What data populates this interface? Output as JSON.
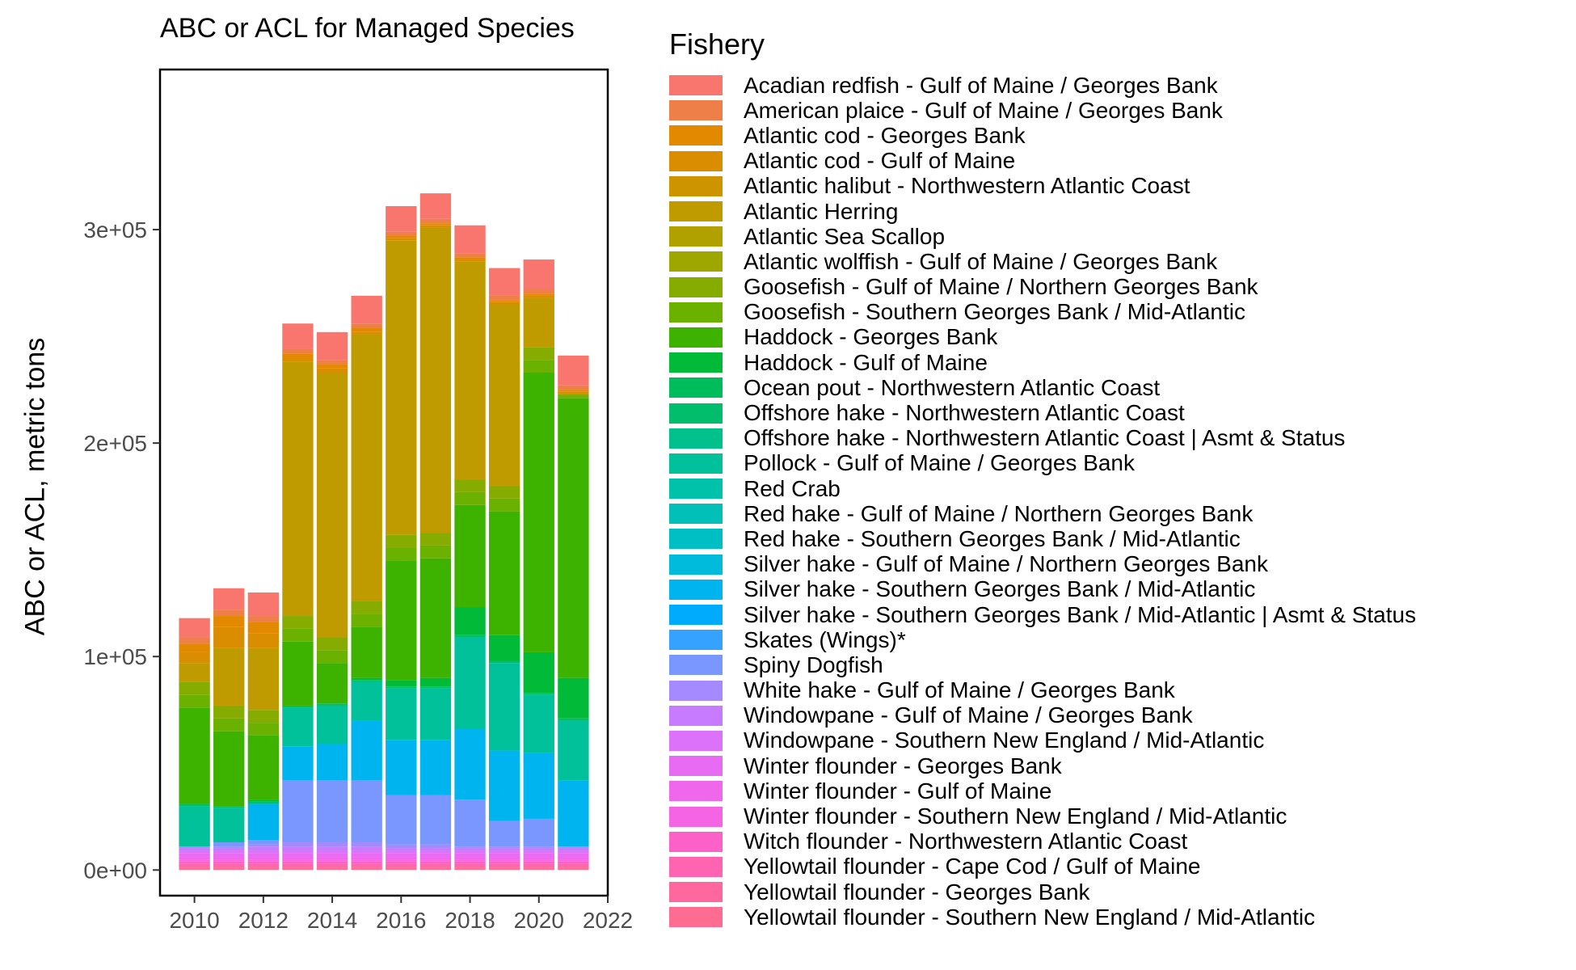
{
  "chart_data": {
    "type": "bar",
    "stacked": true,
    "title": "ABC or ACL for Managed Species",
    "xlabel": "",
    "ylabel": "ABC or ACL, metric tons",
    "legend_title": "Fishery",
    "legend_position": "right",
    "grid": false,
    "xlim": [
      2009,
      2022
    ],
    "ylim": [
      -12000,
      375000
    ],
    "x_ticks": [
      2010,
      2012,
      2014,
      2016,
      2018,
      2020,
      2022
    ],
    "x_tick_labels": [
      "2010",
      "2012",
      "2014",
      "2016",
      "2018",
      "2020",
      "2022"
    ],
    "y_ticks": [
      0,
      100000,
      200000,
      300000
    ],
    "y_tick_labels": [
      "0e+00",
      "1e+05",
      "2e+05",
      "3e+05"
    ],
    "x": [
      2010,
      2011,
      2012,
      2013,
      2014,
      2015,
      2016,
      2017,
      2018,
      2019,
      2020,
      2021
    ],
    "series": [
      {
        "name": "Yellowtail flounder - Southern New England / Mid-Atlantic",
        "color": "#FF6C91",
        "values": [
          1000,
          1000,
          1000,
          1000,
          1000,
          1000,
          1000,
          1000,
          1000,
          1000,
          1000,
          1000
        ]
      },
      {
        "name": "Yellowtail flounder - Georges Bank",
        "color": "#FF689F",
        "values": [
          1000,
          1000,
          1000,
          1000,
          1000,
          1000,
          1000,
          1000,
          1000,
          1000,
          1000,
          1000
        ]
      },
      {
        "name": "Yellowtail flounder - Cape Cod / Gulf of Maine",
        "color": "#FF64B0",
        "values": [
          1000,
          1000,
          1000,
          1000,
          1000,
          1000,
          1000,
          1000,
          1000,
          1000,
          1000,
          1000
        ]
      },
      {
        "name": "Witch flounder - Northwestern Atlantic Coast",
        "color": "#FB61C7",
        "values": [
          1000,
          1000,
          1000,
          1000,
          1000,
          1000,
          1000,
          1000,
          1000,
          1000,
          1000,
          1000
        ]
      },
      {
        "name": "Winter flounder - Southern New England / Mid-Atlantic",
        "color": "#F564E3",
        "values": [
          1000,
          1000,
          1000,
          1000,
          1000,
          1000,
          1000,
          1000,
          1000,
          1000,
          1000,
          1000
        ]
      },
      {
        "name": "Winter flounder - Gulf of Maine",
        "color": "#EF67EB",
        "values": [
          1000,
          1000,
          1000,
          1000,
          1000,
          1000,
          1000,
          1000,
          1000,
          1000,
          1000,
          1000
        ]
      },
      {
        "name": "Winter flounder - Georges Bank",
        "color": "#E76BF3",
        "values": [
          2000,
          2000,
          2000,
          2000,
          2000,
          2000,
          2000,
          2000,
          2000,
          2000,
          2000,
          2000
        ]
      },
      {
        "name": "Windowpane - Southern New England / Mid-Atlantic",
        "color": "#DC71FA",
        "values": [
          1000,
          1000,
          1000,
          1000,
          1000,
          1000,
          1000,
          1000,
          1000,
          1000,
          1000,
          1000
        ]
      },
      {
        "name": "Windowpane - Gulf of Maine / Georges Bank",
        "color": "#C77CFF",
        "values": [
          1000,
          1000,
          2000,
          2000,
          2000,
          2000,
          1000,
          1000,
          1000,
          1000,
          1000,
          1000
        ]
      },
      {
        "name": "White hake - Gulf of Maine / Georges Bank",
        "color": "#A58AFF",
        "values": [
          1000,
          1000,
          1000,
          2000,
          2000,
          2000,
          2000,
          2000,
          1000,
          1000,
          1000,
          1000
        ]
      },
      {
        "name": "Spiny Dogfish",
        "color": "#7997FF",
        "values": [
          0,
          2000,
          2000,
          29000,
          29000,
          29000,
          23000,
          23000,
          22000,
          12000,
          13000,
          0
        ]
      },
      {
        "name": "Skates (Wings)*",
        "color": "#35A2FF",
        "values": [
          0,
          0,
          0,
          0,
          0,
          0,
          0,
          0,
          0,
          0,
          0,
          0
        ]
      },
      {
        "name": "Silver hake - Southern Georges Bank / Mid-Atlantic | Asmt & Status",
        "color": "#00ABFD",
        "values": [
          0,
          0,
          0,
          0,
          0,
          0,
          0,
          0,
          0,
          0,
          0,
          0
        ]
      },
      {
        "name": "Silver hake - Southern Georges Bank / Mid-Atlantic",
        "color": "#00B4EF",
        "values": [
          0,
          0,
          17000,
          16000,
          17000,
          28000,
          26000,
          26000,
          33000,
          33000,
          31000,
          31000
        ]
      },
      {
        "name": "Silver hake - Gulf of Maine / Northern Georges Bank",
        "color": "#00BBDB",
        "values": [
          0,
          0,
          0,
          0,
          0,
          0,
          0,
          0,
          0,
          0,
          0,
          0
        ]
      },
      {
        "name": "Red hake - Southern Georges Bank / Mid-Atlantic",
        "color": "#00BFC4",
        "values": [
          0,
          0,
          0,
          0,
          0,
          0,
          0,
          0,
          0,
          0,
          0,
          0
        ]
      },
      {
        "name": "Red hake - Gulf of Maine / Northern Georges Bank",
        "color": "#00C0B8",
        "values": [
          0,
          0,
          0,
          0,
          0,
          0,
          0,
          0,
          0,
          0,
          0,
          0
        ]
      },
      {
        "name": "Red Crab",
        "color": "#00C1AA",
        "values": [
          0,
          0,
          0,
          0,
          0,
          0,
          0,
          0,
          0,
          0,
          0,
          0
        ]
      },
      {
        "name": "Pollock - Gulf of Maine / Georges Bank",
        "color": "#00C19A",
        "values": [
          19000,
          16000,
          0,
          18000,
          18000,
          18000,
          24000,
          24000,
          43000,
          41000,
          27000,
          28000
        ]
      },
      {
        "name": "Offshore hake - Northwestern Atlantic Coast | Asmt & Status",
        "color": "#00C08B",
        "values": [
          0,
          0,
          0,
          0,
          0,
          0,
          0,
          0,
          0,
          0,
          0,
          0
        ]
      },
      {
        "name": "Offshore hake - Northwestern Atlantic Coast",
        "color": "#00BE6C",
        "values": [
          1000,
          1000,
          1000,
          1000,
          1000,
          1000,
          1000,
          1000,
          1000,
          1000,
          1000,
          1000
        ]
      },
      {
        "name": "Ocean pout - Northwestern Atlantic Coast",
        "color": "#00BD5C",
        "values": [
          0,
          0,
          0,
          0,
          0,
          0,
          0,
          0,
          0,
          0,
          0,
          0
        ]
      },
      {
        "name": "Haddock - Gulf of Maine",
        "color": "#00BA38",
        "values": [
          0,
          0,
          1000,
          0,
          0,
          1000,
          3000,
          4000,
          13000,
          12000,
          19000,
          19000
        ]
      },
      {
        "name": "Haddock - Georges Bank",
        "color": "#3DB300",
        "values": [
          45000,
          35000,
          30000,
          30000,
          19000,
          24000,
          56000,
          56000,
          48000,
          58000,
          131000,
          131000
        ]
      },
      {
        "name": "Goosefish - Southern Georges Bank / Mid-Atlantic",
        "color": "#6BB100",
        "values": [
          6000,
          6000,
          6000,
          6000,
          6000,
          6000,
          6000,
          6000,
          6000,
          6000,
          6000,
          1000
        ]
      },
      {
        "name": "Goosefish - Gulf of Maine / Northern Georges Bank",
        "color": "#86AC00",
        "values": [
          6000,
          6000,
          6000,
          6000,
          6000,
          6000,
          6000,
          6000,
          6000,
          6000,
          6000,
          1000
        ]
      },
      {
        "name": "Atlantic wolffish - Gulf of Maine / Georges Bank",
        "color": "#9DA700",
        "values": [
          0,
          0,
          0,
          0,
          0,
          0,
          0,
          0,
          0,
          0,
          0,
          0
        ]
      },
      {
        "name": "Atlantic Sea Scallop",
        "color": "#B0A100",
        "values": [
          0,
          0,
          0,
          0,
          0,
          0,
          0,
          0,
          0,
          0,
          0,
          0
        ]
      },
      {
        "name": "Atlantic Herring",
        "color": "#C09B00",
        "values": [
          9000,
          27000,
          29000,
          119000,
          124000,
          125000,
          138000,
          143000,
          102000,
          85000,
          23000,
          0
        ]
      },
      {
        "name": "Atlantic halibut - Northwestern Atlantic Coast",
        "color": "#CE9400",
        "values": [
          0,
          0,
          0,
          0,
          0,
          0,
          0,
          0,
          0,
          0,
          0,
          0
        ]
      },
      {
        "name": "Atlantic cod - Gulf of Maine",
        "color": "#DA8D00",
        "values": [
          5000,
          10000,
          7000,
          2000,
          2000,
          1000,
          1000,
          1000,
          1000,
          1000,
          1000,
          1000
        ]
      },
      {
        "name": "Atlantic cod - Georges Bank",
        "color": "#E38900",
        "values": [
          4000,
          5000,
          5000,
          2000,
          2000,
          2000,
          1000,
          1000,
          1000,
          1000,
          1000,
          1000
        ]
      },
      {
        "name": "American plaice - Gulf of Maine / Georges Bank",
        "color": "#EF7F49",
        "values": [
          3000,
          3000,
          3000,
          2000,
          2000,
          2000,
          2000,
          2000,
          2000,
          2000,
          2000,
          2000
        ]
      },
      {
        "name": "Acadian redfish - Gulf of Maine / Georges Bank",
        "color": "#F8766D",
        "values": [
          9000,
          10000,
          11000,
          12000,
          13000,
          13000,
          12000,
          12000,
          13000,
          13000,
          14000,
          14000
        ]
      }
    ]
  }
}
